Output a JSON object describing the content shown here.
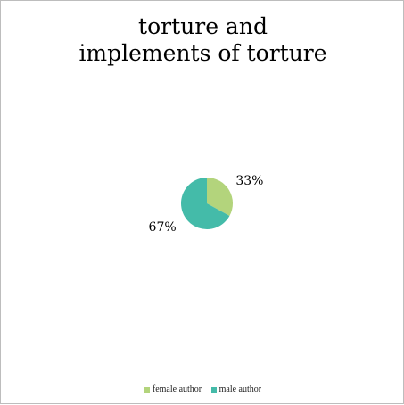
{
  "chart_data": {
    "type": "pie",
    "title_lines": [
      "torture and",
      "implements of torture"
    ],
    "slices": [
      {
        "name": "female author",
        "value": 33,
        "label": "33%",
        "color": "#b3d47c"
      },
      {
        "name": "male author",
        "value": 67,
        "label": "67%",
        "color": "#44bba9"
      }
    ],
    "legend_position": "bottom"
  }
}
